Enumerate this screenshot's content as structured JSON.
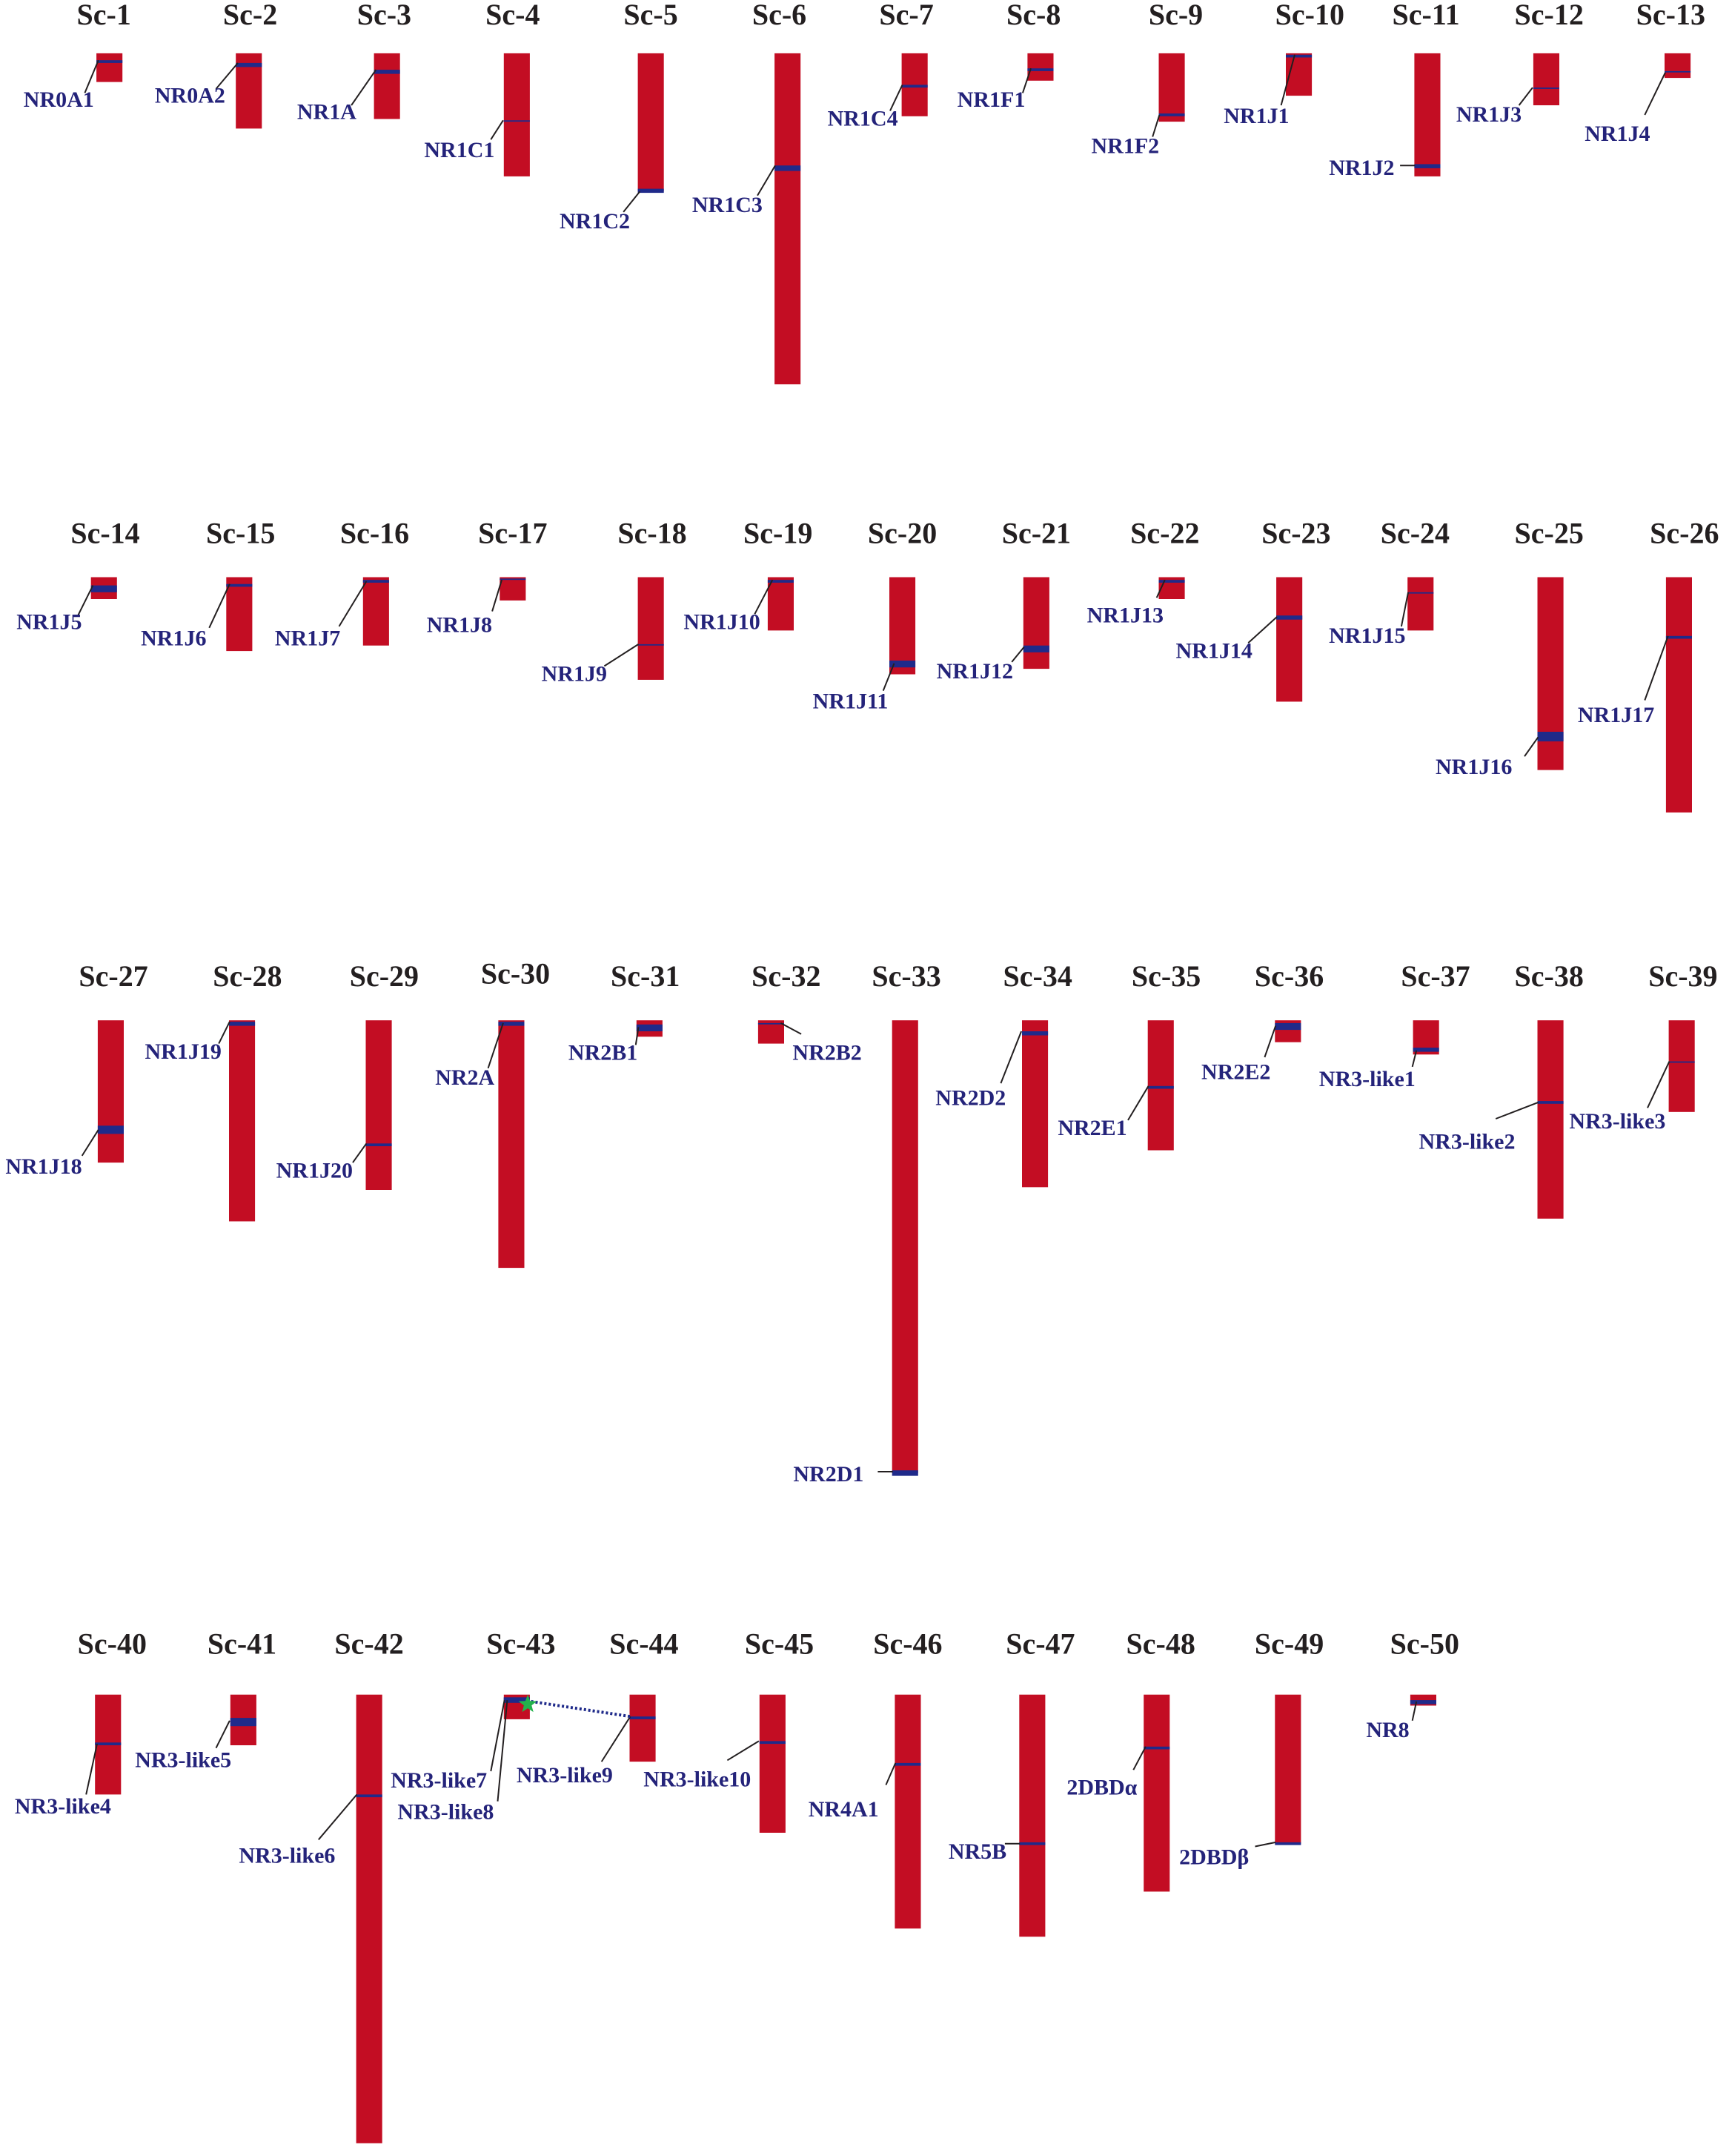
{
  "colors": {
    "scaffold": "#c30d23",
    "gene_mark": "#1f2a8a",
    "leader": "#231f20",
    "scaffold_label": "#231f20",
    "gene_label": "#24237a",
    "dup_link": "#1f2a8a",
    "dup_star": "#22b24c"
  },
  "scaffolds": [
    {
      "id": "Sc-1",
      "genes": [
        "NR0A1"
      ]
    },
    {
      "id": "Sc-2",
      "genes": [
        "NR0A2"
      ]
    },
    {
      "id": "Sc-3",
      "genes": [
        "NR1A"
      ]
    },
    {
      "id": "Sc-4",
      "genes": [
        "NR1C1"
      ]
    },
    {
      "id": "Sc-5",
      "genes": [
        "NR1C2"
      ]
    },
    {
      "id": "Sc-6",
      "genes": [
        "NR1C3"
      ]
    },
    {
      "id": "Sc-7",
      "genes": [
        "NR1C4"
      ]
    },
    {
      "id": "Sc-8",
      "genes": [
        "NR1F1"
      ]
    },
    {
      "id": "Sc-9",
      "genes": [
        "NR1F2"
      ]
    },
    {
      "id": "Sc-10",
      "genes": [
        "NR1J1"
      ]
    },
    {
      "id": "Sc-11",
      "genes": [
        "NR1J2"
      ]
    },
    {
      "id": "Sc-12",
      "genes": [
        "NR1J3"
      ]
    },
    {
      "id": "Sc-13",
      "genes": [
        "NR1J4"
      ]
    },
    {
      "id": "Sc-14",
      "genes": [
        "NR1J5"
      ]
    },
    {
      "id": "Sc-15",
      "genes": [
        "NR1J6"
      ]
    },
    {
      "id": "Sc-16",
      "genes": [
        "NR1J7"
      ]
    },
    {
      "id": "Sc-17",
      "genes": [
        "NR1J8"
      ]
    },
    {
      "id": "Sc-18",
      "genes": [
        "NR1J9"
      ]
    },
    {
      "id": "Sc-19",
      "genes": [
        "NR1J10"
      ]
    },
    {
      "id": "Sc-20",
      "genes": [
        "NR1J11"
      ]
    },
    {
      "id": "Sc-21",
      "genes": [
        "NR1J12"
      ]
    },
    {
      "id": "Sc-22",
      "genes": [
        "NR1J13"
      ]
    },
    {
      "id": "Sc-23",
      "genes": [
        "NR1J14"
      ]
    },
    {
      "id": "Sc-24",
      "genes": [
        "NR1J15"
      ]
    },
    {
      "id": "Sc-25",
      "genes": [
        "NR1J16"
      ]
    },
    {
      "id": "Sc-26",
      "genes": [
        "NR1J17"
      ]
    },
    {
      "id": "Sc-27",
      "genes": [
        "NR1J18"
      ]
    },
    {
      "id": "Sc-28",
      "genes": [
        "NR1J19"
      ]
    },
    {
      "id": "Sc-29",
      "genes": [
        "NR1J20"
      ]
    },
    {
      "id": "Sc-30",
      "genes": [
        "NR2A"
      ]
    },
    {
      "id": "Sc-31",
      "genes": [
        "NR2B1"
      ]
    },
    {
      "id": "Sc-32",
      "genes": [
        "NR2B2"
      ]
    },
    {
      "id": "Sc-33",
      "genes": [
        "NR2D1"
      ]
    },
    {
      "id": "Sc-34",
      "genes": [
        "NR2D2"
      ]
    },
    {
      "id": "Sc-35",
      "genes": [
        "NR2E1"
      ]
    },
    {
      "id": "Sc-36",
      "genes": [
        "NR2E2"
      ]
    },
    {
      "id": "Sc-37",
      "genes": [
        "NR3-like1"
      ]
    },
    {
      "id": "Sc-38",
      "genes": [
        "NR3-like2"
      ]
    },
    {
      "id": "Sc-39",
      "genes": [
        "NR3-like3"
      ]
    },
    {
      "id": "Sc-40",
      "genes": [
        "NR3-like4"
      ]
    },
    {
      "id": "Sc-41",
      "genes": [
        "NR3-like5"
      ]
    },
    {
      "id": "Sc-42",
      "genes": [
        "NR3-like6"
      ]
    },
    {
      "id": "Sc-43",
      "genes": [
        "NR3-like7",
        "NR3-like8"
      ]
    },
    {
      "id": "Sc-44",
      "genes": [
        "NR3-like9"
      ]
    },
    {
      "id": "Sc-45",
      "genes": [
        "NR3-like10"
      ]
    },
    {
      "id": "Sc-46",
      "genes": [
        "NR4A1"
      ]
    },
    {
      "id": "Sc-47",
      "genes": [
        "NR5B"
      ]
    },
    {
      "id": "Sc-48",
      "genes": [
        "2DBDα"
      ]
    },
    {
      "id": "Sc-49",
      "genes": [
        "2DBDβ"
      ]
    },
    {
      "id": "Sc-50",
      "genes": [
        "NR8"
      ]
    }
  ],
  "links": [
    {
      "from": "Sc-43",
      "to": "Sc-44",
      "style": "dotted",
      "marker": "star"
    }
  ]
}
